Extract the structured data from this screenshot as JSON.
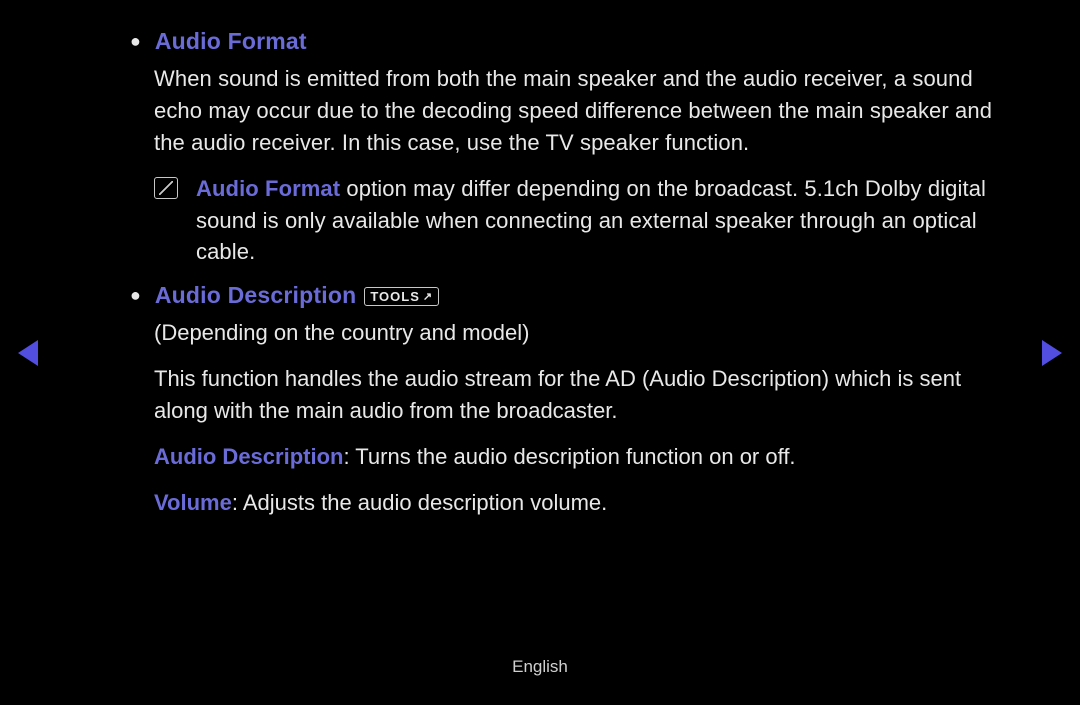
{
  "sections": {
    "audioFormat": {
      "title": "Audio Format",
      "body": "When sound is emitted from both the main speaker and the audio receiver, a sound echo may occur due to the decoding speed difference between the main speaker and the audio receiver. In this case, use the TV speaker function.",
      "noteHighlight": "Audio Format",
      "noteRest": " option may differ depending on the broadcast. 5.1ch Dolby digital sound is only available when connecting an external speaker through an optical cable."
    },
    "audioDescription": {
      "title": "Audio Description",
      "toolsLabel": "TOOLS",
      "subtitle": "(Depending on the country and model)",
      "body": "This function handles the audio stream for the AD (Audio Description) which is sent along with the main audio from the broadcaster.",
      "line1Label": "Audio Description",
      "line1Rest": ": Turns the audio description function on or off.",
      "line2Label": "Volume",
      "line2Rest": ": Adjusts the audio description volume."
    }
  },
  "footer": {
    "language": "English"
  },
  "colors": {
    "background": "#000000",
    "text": "#e8e8e8",
    "highlight": "#6b6bd8",
    "arrow": "#524ee0",
    "border": "#c8c8c8"
  }
}
